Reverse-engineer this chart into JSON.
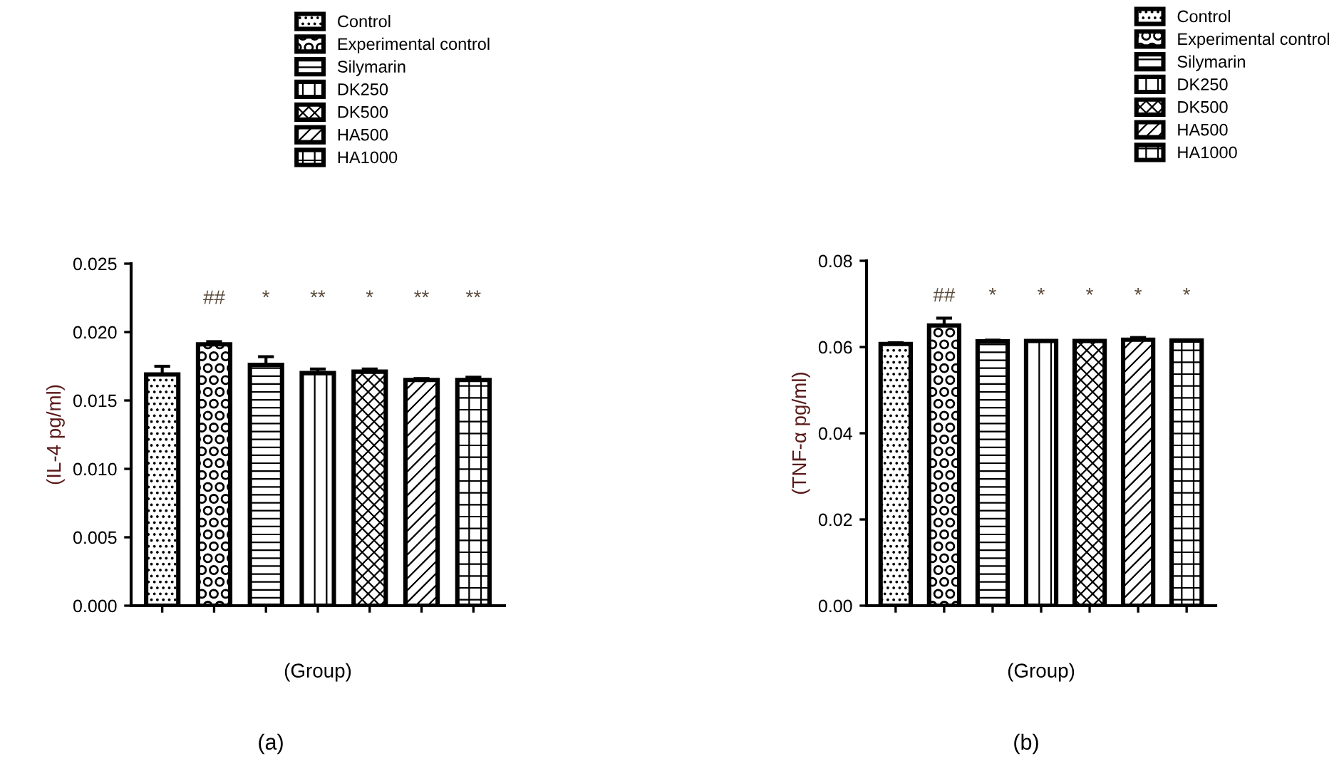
{
  "chart_data": [
    {
      "type": "bar",
      "categories": [
        null,
        null,
        null,
        null,
        null,
        null,
        null
      ],
      "xlabel": "(Group)",
      "ylabel": "(IL-4 pg/ml)",
      "ylim": [
        0,
        0.025
      ],
      "yticks": [
        {
          "value": 0,
          "label": "0.000"
        },
        {
          "value": 0.005,
          "label": "0.005"
        },
        {
          "value": 0.01,
          "label": "0.010"
        },
        {
          "value": 0.015,
          "label": "0.015"
        },
        {
          "value": 0.02,
          "label": "0.020"
        },
        {
          "value": 0.025,
          "label": "0.025"
        }
      ],
      "legend": "top right",
      "grid": false,
      "series": [
        {
          "name": "Control",
          "color": "#000000",
          "values": [
            0.0169,
            null,
            null,
            null,
            null,
            null,
            null
          ],
          "errors": [
            0.0006,
            null,
            null,
            null,
            null,
            null,
            null
          ]
        },
        {
          "name": "Experimental control",
          "color": "#000000",
          "values": [
            null,
            0.0191,
            null,
            null,
            null,
            null,
            null
          ],
          "errors": [
            null,
            0.0002,
            null,
            null,
            null,
            null,
            null
          ]
        },
        {
          "name": "Silymarin",
          "color": "#000000",
          "values": [
            null,
            null,
            0.0176,
            null,
            null,
            null,
            null
          ],
          "errors": [
            null,
            null,
            0.0006,
            null,
            null,
            null,
            null
          ]
        },
        {
          "name": "DK250",
          "color": "#000000",
          "values": [
            null,
            null,
            null,
            0.017,
            null,
            null,
            null
          ],
          "errors": [
            null,
            null,
            null,
            0.0003,
            null,
            null,
            null
          ]
        },
        {
          "name": "DK500",
          "color": "#000000",
          "values": [
            null,
            null,
            null,
            null,
            0.0171,
            null,
            null
          ],
          "errors": [
            null,
            null,
            null,
            null,
            0.0002,
            null,
            null
          ]
        },
        {
          "name": "HA500",
          "color": "#000000",
          "values": [
            null,
            null,
            null,
            null,
            null,
            0.0165,
            null
          ],
          "errors": [
            null,
            null,
            null,
            null,
            null,
            0.0001,
            null
          ]
        },
        {
          "name": "HA1000",
          "color": "#000000",
          "values": [
            null,
            null,
            null,
            null,
            null,
            null,
            0.0165
          ],
          "errors": [
            null,
            null,
            null,
            null,
            null,
            null,
            0.0002
          ]
        }
      ],
      "annotations": [
        "##",
        "*",
        "**",
        "*",
        "**",
        "**",
        "(a)"
      ]
    },
    {
      "type": "bar",
      "categories": [
        null,
        null,
        null,
        null,
        null,
        null,
        null
      ],
      "xlabel": "(Group)",
      "ylabel": "(TNF-α pg/ml)",
      "ylim": [
        0,
        0.08
      ],
      "yticks": [
        {
          "value": 0,
          "label": "0.00"
        },
        {
          "value": 0.02,
          "label": "0.02"
        },
        {
          "value": 0.04,
          "label": "0.04"
        },
        {
          "value": 0.06,
          "label": "0.06"
        },
        {
          "value": 0.08,
          "label": "0.08"
        }
      ],
      "legend": "top right",
      "grid": false,
      "series": [
        {
          "name": "Control",
          "color": "#000000",
          "values": [
            0.0607,
            null,
            null,
            null,
            null,
            null,
            null
          ],
          "errors": [
            0.0003,
            null,
            null,
            null,
            null,
            null,
            null
          ]
        },
        {
          "name": "Experimental control",
          "color": "#000000",
          "values": [
            null,
            0.065,
            null,
            null,
            null,
            null,
            null
          ],
          "errors": [
            null,
            0.0017,
            null,
            null,
            null,
            null,
            null
          ]
        },
        {
          "name": "Silymarin",
          "color": "#000000",
          "values": [
            null,
            null,
            0.0613,
            null,
            null,
            null,
            null
          ],
          "errors": [
            null,
            null,
            0.0003,
            null,
            null,
            null,
            null
          ]
        },
        {
          "name": "DK250",
          "color": "#000000",
          "values": [
            null,
            null,
            null,
            0.0614,
            null,
            null,
            null
          ]
        },
        {
          "name": "DK500",
          "color": "#000000",
          "values": [
            null,
            null,
            null,
            null,
            0.0614,
            null,
            null
          ]
        },
        {
          "name": "HA500",
          "color": "#000000",
          "values": [
            null,
            null,
            null,
            null,
            null,
            0.0617,
            null
          ],
          "errors": [
            null,
            null,
            null,
            null,
            null,
            0.0005,
            null
          ]
        },
        {
          "name": "HA1000",
          "color": "#000000",
          "values": [
            null,
            null,
            null,
            null,
            null,
            null,
            0.0615
          ]
        }
      ],
      "annotations": [
        "##",
        "*",
        "*",
        "*",
        "*",
        "*",
        "(b)"
      ]
    }
  ]
}
